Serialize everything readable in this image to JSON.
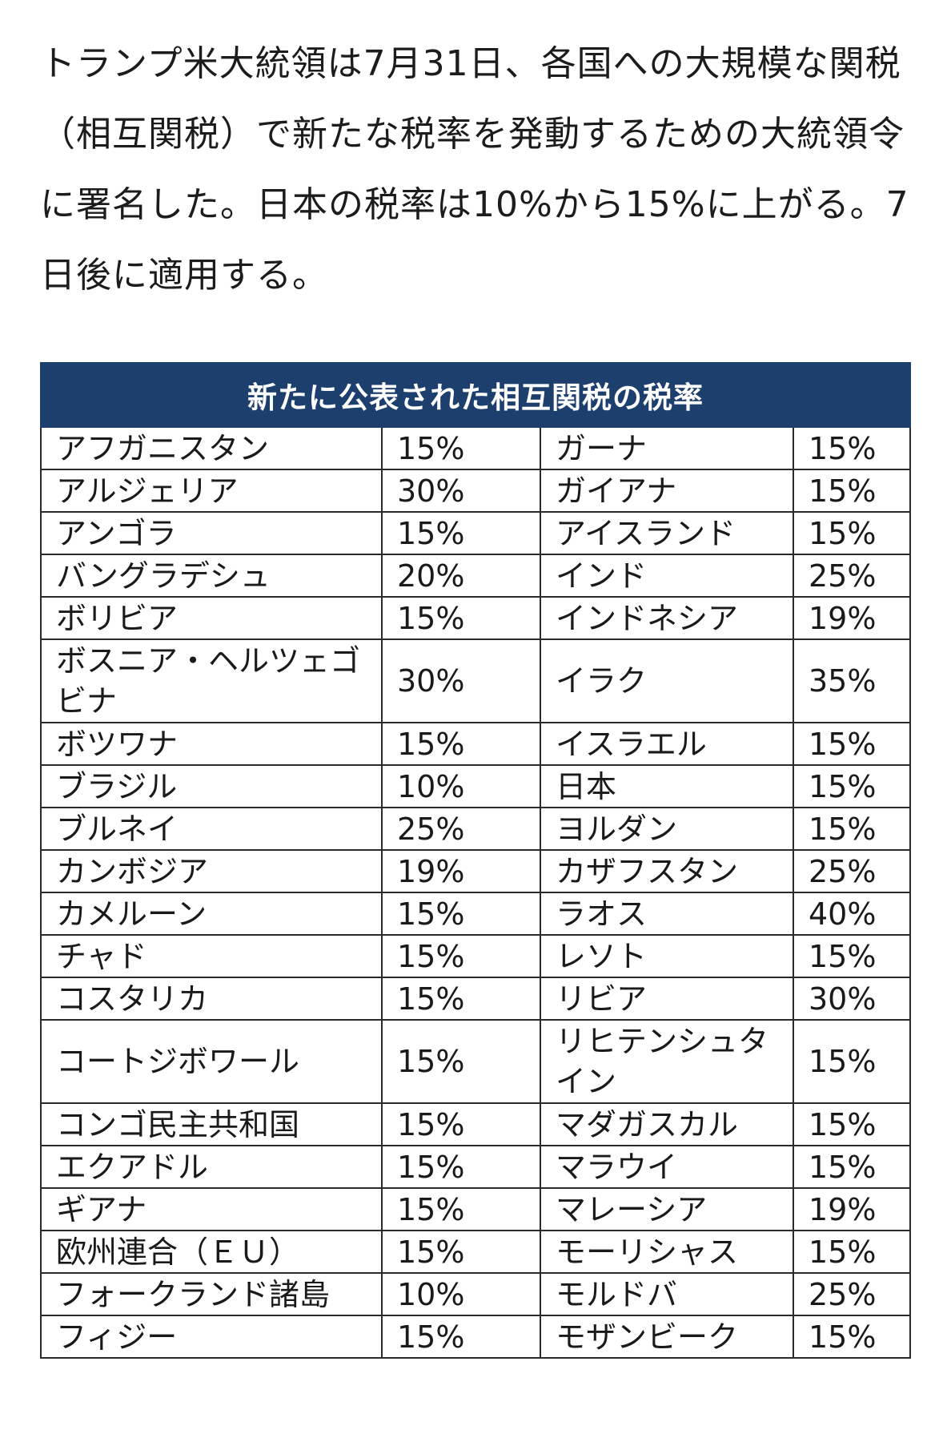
{
  "article": {
    "text": "トランプ米大統領は7月31日、各国への大規模な関税（相互関税）で新たな税率を発動するための大統領令に署名した。日本の税率は10%から15%に上がる。7日後に適用する。"
  },
  "table": {
    "title": "新たに公表された相互関税の税率",
    "rows": [
      {
        "left_country": "アフガニスタン",
        "left_rate": "15%",
        "right_country": "ガーナ",
        "right_rate": "15%"
      },
      {
        "left_country": "アルジェリア",
        "left_rate": "30%",
        "right_country": "ガイアナ",
        "right_rate": "15%"
      },
      {
        "left_country": "アンゴラ",
        "left_rate": "15%",
        "right_country": "アイスランド",
        "right_rate": "15%"
      },
      {
        "left_country": "バングラデシュ",
        "left_rate": "20%",
        "right_country": "インド",
        "right_rate": "25%"
      },
      {
        "left_country": "ボリビア",
        "left_rate": "15%",
        "right_country": "インドネシア",
        "right_rate": "19%"
      },
      {
        "left_country": "ボスニア・ヘルツェゴビナ",
        "left_rate": "30%",
        "right_country": "イラク",
        "right_rate": "35%"
      },
      {
        "left_country": "ボツワナ",
        "left_rate": "15%",
        "right_country": "イスラエル",
        "right_rate": "15%"
      },
      {
        "left_country": "ブラジル",
        "left_rate": "10%",
        "right_country": "日本",
        "right_rate": "15%"
      },
      {
        "left_country": "ブルネイ",
        "left_rate": "25%",
        "right_country": "ヨルダン",
        "right_rate": "15%"
      },
      {
        "left_country": "カンボジア",
        "left_rate": "19%",
        "right_country": "カザフスタン",
        "right_rate": "25%"
      },
      {
        "left_country": "カメルーン",
        "left_rate": "15%",
        "right_country": "ラオス",
        "right_rate": "40%"
      },
      {
        "left_country": "チャド",
        "left_rate": "15%",
        "right_country": "レソト",
        "right_rate": "15%"
      },
      {
        "left_country": "コスタリカ",
        "left_rate": "15%",
        "right_country": "リビア",
        "right_rate": "30%"
      },
      {
        "left_country": "コートジボワール",
        "left_rate": "15%",
        "right_country": "リヒテンシュタイン",
        "right_rate": "15%"
      },
      {
        "left_country": "コンゴ民主共和国",
        "left_rate": "15%",
        "right_country": "マダガスカル",
        "right_rate": "15%"
      },
      {
        "left_country": "エクアドル",
        "left_rate": "15%",
        "right_country": "マラウイ",
        "right_rate": "15%"
      },
      {
        "left_country": "ギアナ",
        "left_rate": "15%",
        "right_country": "マレーシア",
        "right_rate": "19%"
      },
      {
        "left_country": "欧州連合（ＥＵ）",
        "left_rate": "15%",
        "right_country": "モーリシャス",
        "right_rate": "15%"
      },
      {
        "left_country": "フォークランド諸島",
        "left_rate": "10%",
        "right_country": "モルドバ",
        "right_rate": "25%"
      },
      {
        "left_country": "フィジー",
        "left_rate": "15%",
        "right_country": "モザンビーク",
        "right_rate": "15%"
      }
    ]
  }
}
